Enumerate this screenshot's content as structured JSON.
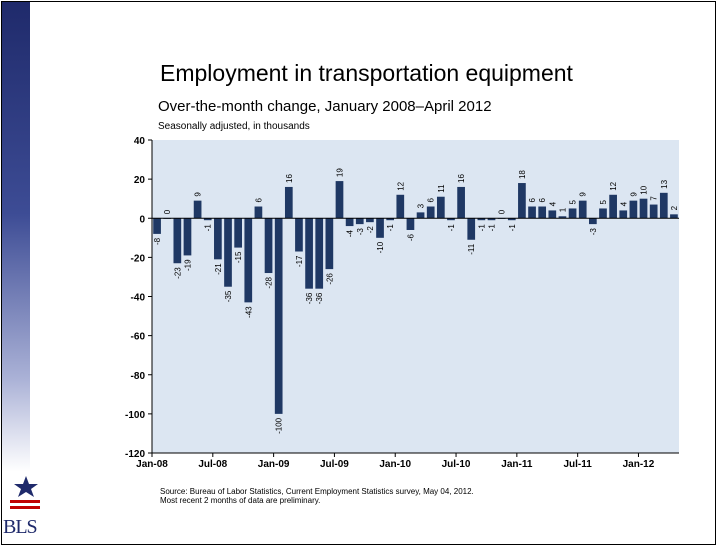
{
  "slide": {
    "title": "Employment in transportation equipment",
    "subtitle": "Over-the-month change, January 2008–April 2012",
    "note": "Seasonally adjusted, in thousands",
    "source_line1": "Source: Bureau of Labor Statistics, Current Employment Statistics survey, May 04, 2012.",
    "source_line2": "Most recent 2 months of data are preliminary.",
    "logo_text": "BLS"
  },
  "colors": {
    "bar": "#1f3864",
    "plot_bg": "#dce6f2",
    "sidebar": "#1f2a6b"
  },
  "chart_data": {
    "type": "bar",
    "title": "Employment in transportation equipment",
    "ylim": [
      -120,
      40
    ],
    "yticks": [
      40,
      20,
      0,
      -20,
      -40,
      -60,
      -80,
      -100,
      -120
    ],
    "xtick_labels": [
      "Jan-08",
      "Jul-08",
      "Jan-09",
      "Jul-09",
      "Jan-10",
      "Jul-10",
      "Jan-11",
      "Jul-11",
      "Jan-12"
    ],
    "xtick_index": [
      0,
      6,
      12,
      18,
      24,
      30,
      36,
      42,
      48
    ],
    "grid": false,
    "start_month": "Jan-08",
    "values": [
      -8,
      0,
      -23,
      -19,
      9,
      -1,
      -21,
      -35,
      -15,
      -43,
      6,
      -28,
      -100,
      16,
      -17,
      -36,
      -36,
      -26,
      19,
      -4,
      -3,
      -2,
      -10,
      -1,
      12,
      -6,
      3,
      6,
      11,
      -1,
      16,
      -11,
      -1,
      -1,
      0,
      -1,
      18,
      6,
      6,
      4,
      1,
      5,
      9,
      -3,
      5,
      12,
      4,
      9,
      10,
      7,
      13,
      2
    ]
  }
}
